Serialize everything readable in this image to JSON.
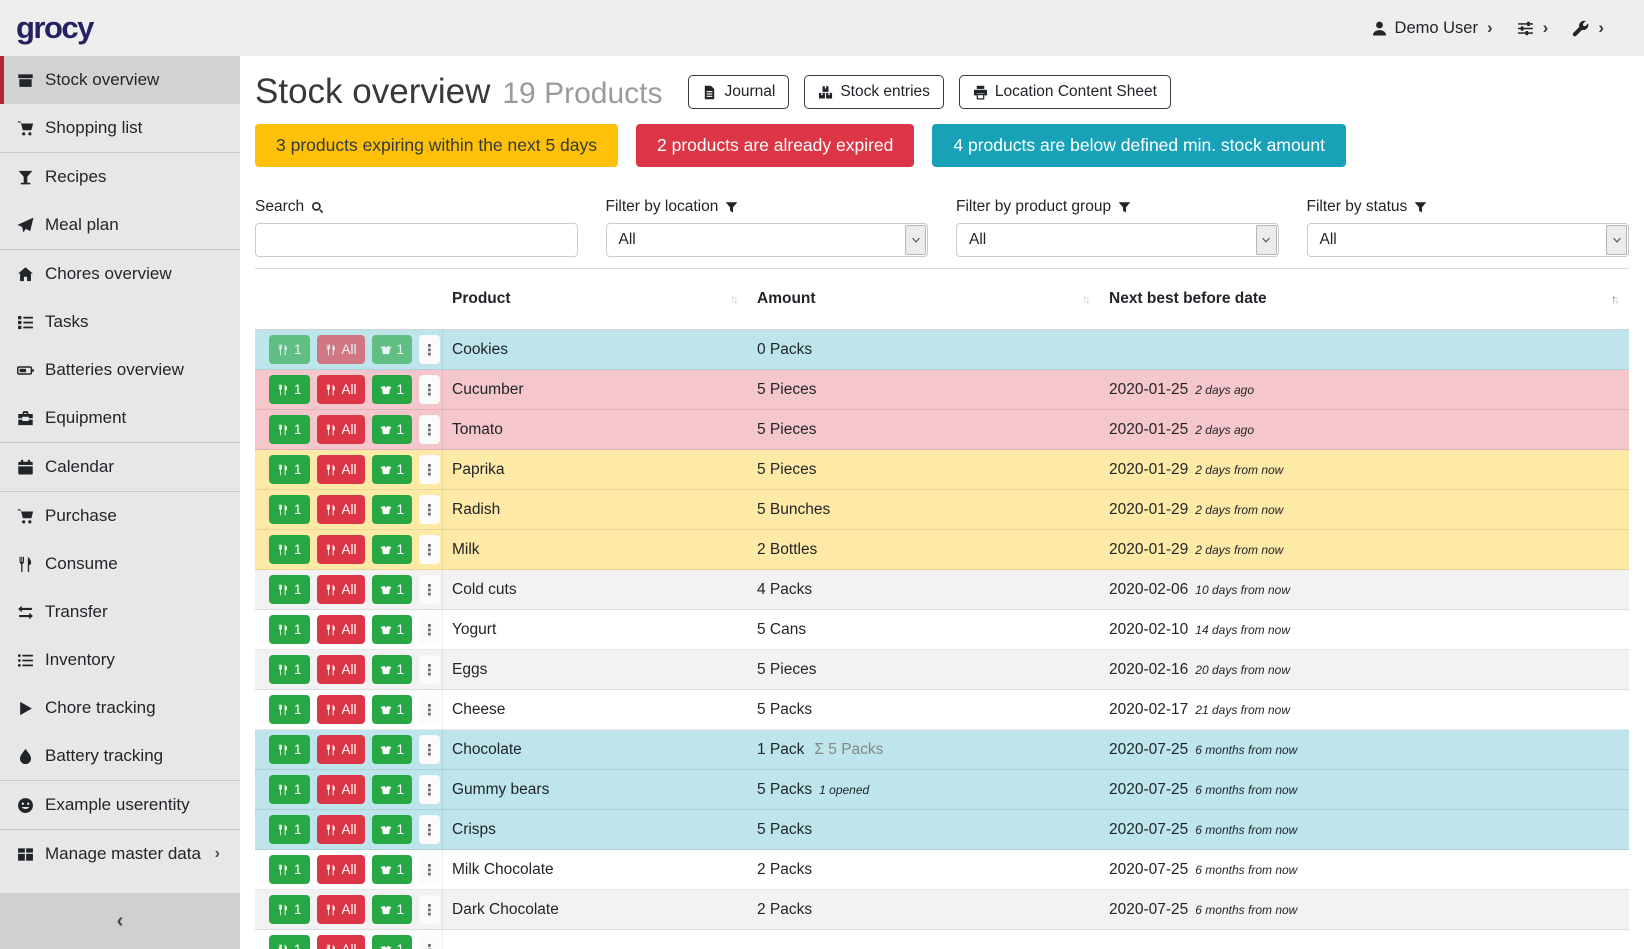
{
  "colors": {
    "logo_color": "#262262",
    "active_accent": "#ae2633",
    "banner_warning": "#ffc107",
    "banner_danger": "#dc3545",
    "banner_info": "#17a2b8",
    "row_info": "#bee5eb",
    "row_danger": "#f5c6cb",
    "row_warning": "#ffe9a6",
    "button_green": "#28a745",
    "button_red": "#dc3545"
  },
  "header": {
    "logo": "grocy",
    "user_label": "Demo User"
  },
  "sidebar": {
    "collapse_glyph": "‹",
    "items": [
      {
        "label": "Stock overview",
        "icon": "box",
        "active": true
      },
      {
        "label": "Shopping list",
        "icon": "cart"
      },
      {
        "label": "Recipes",
        "icon": "cocktail",
        "divider": true
      },
      {
        "label": "Meal plan",
        "icon": "paper-plane"
      },
      {
        "label": "Chores overview",
        "icon": "home",
        "divider": true
      },
      {
        "label": "Tasks",
        "icon": "tasks"
      },
      {
        "label": "Batteries overview",
        "icon": "battery"
      },
      {
        "label": "Equipment",
        "icon": "toolbox"
      },
      {
        "label": "Calendar",
        "icon": "calendar",
        "divider": true
      },
      {
        "label": "Purchase",
        "icon": "cart",
        "divider": true
      },
      {
        "label": "Consume",
        "icon": "utensils"
      },
      {
        "label": "Transfer",
        "icon": "exchange"
      },
      {
        "label": "Inventory",
        "icon": "list"
      },
      {
        "label": "Chore tracking",
        "icon": "play"
      },
      {
        "label": "Battery tracking",
        "icon": "droplet"
      },
      {
        "label": "Example userentity",
        "icon": "smiley",
        "divider": true
      },
      {
        "label": "Manage master data",
        "icon": "grid",
        "divider": true,
        "chevron": true
      }
    ]
  },
  "page": {
    "title": "Stock overview",
    "subtitle": "19 Products",
    "header_buttons": [
      {
        "label": "Journal",
        "icon": "file"
      },
      {
        "label": "Stock entries",
        "icon": "boxes"
      },
      {
        "label": "Location Content Sheet",
        "icon": "print"
      }
    ],
    "banners": [
      {
        "text": "3 products expiring within the next 5 days",
        "type": "warning"
      },
      {
        "text": "2 products are already expired",
        "type": "danger"
      },
      {
        "text": "4 products are below defined min. stock amount",
        "type": "info"
      }
    ],
    "filters": {
      "search_label": "Search",
      "search_value": "",
      "location_label": "Filter by location",
      "location_value": "All",
      "group_label": "Filter by product group",
      "group_value": "All",
      "status_label": "Filter by status",
      "status_value": "All"
    },
    "table": {
      "columns": [
        {
          "label": "Product",
          "sorted": false
        },
        {
          "label": "Amount",
          "sorted": false
        },
        {
          "label": "Next best before date",
          "sorted": true
        }
      ],
      "row_buttons": {
        "consume_one": "1",
        "consume_all": "All",
        "open_one": "1"
      },
      "rows": [
        {
          "product": "Cookies",
          "amount": "0 Packs",
          "date": "",
          "date_note": "",
          "state": "info",
          "muted": true
        },
        {
          "product": "Cucumber",
          "amount": "5 Pieces",
          "date": "2020-01-25",
          "date_note": "2 days ago",
          "state": "danger"
        },
        {
          "product": "Tomato",
          "amount": "5 Pieces",
          "date": "2020-01-25",
          "date_note": "2 days ago",
          "state": "danger"
        },
        {
          "product": "Paprika",
          "amount": "5 Pieces",
          "date": "2020-01-29",
          "date_note": "2 days from now",
          "state": "warning"
        },
        {
          "product": "Radish",
          "amount": "5 Bunches",
          "date": "2020-01-29",
          "date_note": "2 days from now",
          "state": "warning"
        },
        {
          "product": "Milk",
          "amount": "2 Bottles",
          "date": "2020-01-29",
          "date_note": "2 days from now",
          "state": "warning"
        },
        {
          "product": "Cold cuts",
          "amount": "4 Packs",
          "date": "2020-02-06",
          "date_note": "10 days from now",
          "state": ""
        },
        {
          "product": "Yogurt",
          "amount": "5 Cans",
          "date": "2020-02-10",
          "date_note": "14 days from now",
          "state": ""
        },
        {
          "product": "Eggs",
          "amount": "5 Pieces",
          "date": "2020-02-16",
          "date_note": "20 days from now",
          "state": ""
        },
        {
          "product": "Cheese",
          "amount": "5 Packs",
          "date": "2020-02-17",
          "date_note": "21 days from now",
          "state": ""
        },
        {
          "product": "Chocolate",
          "amount": "1 Pack",
          "amount_sum": "Σ 5 Packs",
          "date": "2020-07-25",
          "date_note": "6 months from now",
          "state": "info"
        },
        {
          "product": "Gummy bears",
          "amount": "5 Packs",
          "amount_note": "1 opened",
          "date": "2020-07-25",
          "date_note": "6 months from now",
          "state": "info"
        },
        {
          "product": "Crisps",
          "amount": "5 Packs",
          "date": "2020-07-25",
          "date_note": "6 months from now",
          "state": "info"
        },
        {
          "product": "Milk Chocolate",
          "amount": "2 Packs",
          "date": "2020-07-25",
          "date_note": "6 months from now",
          "state": ""
        },
        {
          "product": "Dark Chocolate",
          "amount": "2 Packs",
          "date": "2020-07-25",
          "date_note": "6 months from now",
          "state": ""
        },
        {
          "product": "",
          "amount": "",
          "date": "",
          "date_note": "",
          "state": "",
          "partial": true
        }
      ]
    }
  }
}
